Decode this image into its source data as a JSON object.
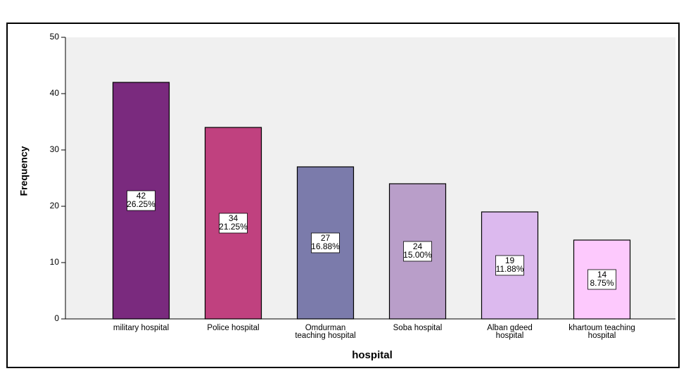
{
  "chart_data": {
    "type": "bar",
    "x_label": "hospital",
    "y_label": "Frequency",
    "categories": [
      "military hospital",
      "Police hospital",
      "Omdurman teaching hospital",
      "Soba hospital",
      "Alban gdeed hospital",
      "khartoum teaching hospital"
    ],
    "values": [
      42,
      34,
      27,
      24,
      19,
      14
    ],
    "percent_labels": [
      "26.25%",
      "21.25%",
      "16.88%",
      "15.00%",
      "11.88%",
      "8.75%"
    ],
    "colors": [
      "#7a2a7e",
      "#c0417f",
      "#7b7bab",
      "#b99ec9",
      "#dcb9ee",
      "#fdc9fd"
    ],
    "ylim": [
      0,
      50
    ],
    "yticks": [
      0,
      10,
      20,
      30,
      40,
      50
    ]
  }
}
